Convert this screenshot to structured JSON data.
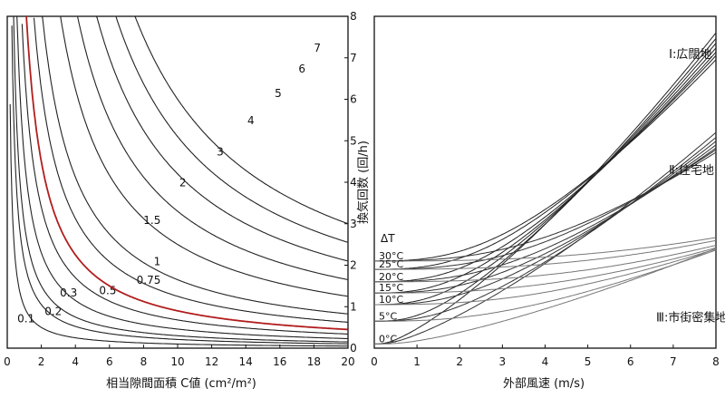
{
  "chart_data": [
    {
      "type": "line",
      "xlabel": "相当隙間面積 C値 (cm²/m²)",
      "ylabel": "換気回数 (回/h)",
      "xlim": [
        0,
        20
      ],
      "ylim": [
        0,
        8
      ],
      "x_ticks": [
        "0",
        "2",
        "4",
        "6",
        "8",
        "10",
        "12",
        "14",
        "16",
        "18",
        "20"
      ],
      "y_ticks": [
        "0",
        "1",
        "2",
        "3",
        "4",
        "5",
        "6",
        "7",
        "8"
      ],
      "grid": false,
      "highlight_color": "#b11e1e",
      "series": [
        {
          "name": "0.1",
          "k": 1.0,
          "label_at": [
            1.1,
            0.62
          ]
        },
        {
          "name": "0.2",
          "k": 2.1,
          "label_at": [
            2.7,
            0.8
          ]
        },
        {
          "name": "0.3",
          "k": 3.0,
          "label_at": [
            3.6,
            1.25
          ]
        },
        {
          "name": "0.5",
          "k": 4.6,
          "label_at": [
            5.9,
            1.3
          ]
        },
        {
          "name": "0.75",
          "k": 6.8,
          "label_at": [
            8.3,
            1.55
          ]
        },
        {
          "name": "1",
          "k": 9.0,
          "label_at": [
            8.8,
            2.0
          ]
        },
        {
          "name": "1.5",
          "k": 12.5,
          "label_at": [
            8.5,
            3.0
          ]
        },
        {
          "name": "2",
          "k": 16.5,
          "label_at": [
            10.3,
            3.9
          ]
        },
        {
          "name": "3",
          "k": 25.0,
          "label_at": [
            12.5,
            4.65
          ]
        },
        {
          "name": "4",
          "k": 33.0,
          "label_at": [
            14.3,
            5.4
          ]
        },
        {
          "name": "5",
          "k": 42.0,
          "label_at": [
            15.9,
            6.05
          ]
        },
        {
          "name": "6",
          "k": 51.0,
          "label_at": [
            17.3,
            6.65
          ]
        },
        {
          "name": "7",
          "k": 60.0,
          "label_at": [
            18.2,
            7.15
          ]
        }
      ],
      "highlight_series": "1"
    },
    {
      "type": "line",
      "xlabel": "外部風速 (m/s)",
      "xlim": [
        0,
        8
      ],
      "ylim": [
        0,
        8
      ],
      "x_ticks": [
        "0",
        "1",
        "2",
        "3",
        "4",
        "5",
        "6",
        "7",
        "8"
      ],
      "grid": false,
      "legend_title": "ΔT",
      "dT_labels": [
        {
          "text": "30°C",
          "y": 2.1
        },
        {
          "text": "25°C",
          "y": 1.9
        },
        {
          "text": "20°C",
          "y": 1.6
        },
        {
          "text": "15°C",
          "y": 1.33
        },
        {
          "text": "10°C",
          "y": 1.05
        },
        {
          "text": "5°C",
          "y": 0.65
        },
        {
          "text": "0°C",
          "y": 0.1
        }
      ],
      "group_labels": [
        {
          "text": "Ⅰ:広闊地",
          "x": 6.9,
          "y": 7.0
        },
        {
          "text": "Ⅱ:住宅地",
          "x": 6.9,
          "y": 4.2
        },
        {
          "text": "Ⅲ:市街密集地",
          "x": 6.6,
          "y": 0.65
        }
      ],
      "groups": [
        {
          "name": "Ⅰ",
          "slope": 1.55,
          "at8": 7.6,
          "bases": [
            2.1,
            1.9,
            1.6,
            1.33,
            1.05,
            0.65,
            0.1
          ]
        },
        {
          "name": "Ⅱ",
          "slope": 1.05,
          "at8": 5.2,
          "bases": [
            2.1,
            1.9,
            1.6,
            1.33,
            1.05,
            0.65,
            0.1
          ]
        },
        {
          "name": "Ⅲ",
          "slope": 0.4,
          "at8": 2.4,
          "bases": [
            2.1,
            1.9,
            1.6,
            1.33,
            1.05,
            0.65,
            0.1
          ]
        }
      ]
    }
  ]
}
